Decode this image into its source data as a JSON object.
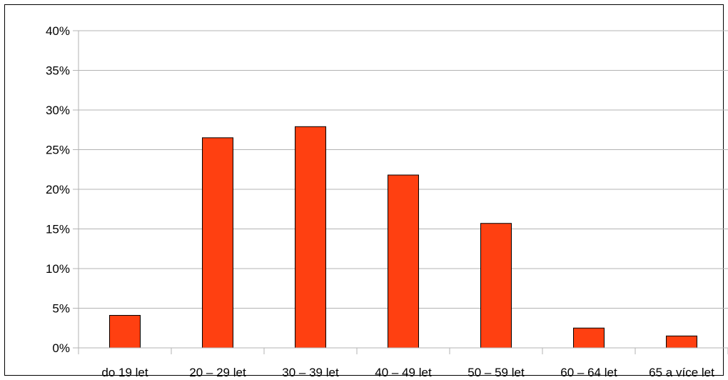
{
  "chart_data": {
    "type": "bar",
    "title": "",
    "xlabel": "",
    "ylabel": "",
    "categories": [
      "do 19 let",
      "20 – 29 let",
      "30 – 39 let",
      "40 – 49 let",
      "50 – 59 let",
      "60 – 64 let",
      "65 a více let"
    ],
    "values": [
      4.1,
      26.5,
      27.9,
      21.8,
      15.7,
      2.5,
      1.5
    ],
    "ylim": [
      0,
      40
    ],
    "yticks": [
      0,
      5,
      10,
      15,
      20,
      25,
      30,
      35,
      40
    ],
    "ytick_labels": [
      "0%",
      "5%",
      "10%",
      "15%",
      "20%",
      "25%",
      "30%",
      "35%",
      "40%"
    ],
    "grid": true,
    "legend": "none",
    "colors": {
      "bar_fill": "#ff4011",
      "bar_stroke": "#000000",
      "grid": "#b3b3b3",
      "frame": "#000000"
    }
  }
}
